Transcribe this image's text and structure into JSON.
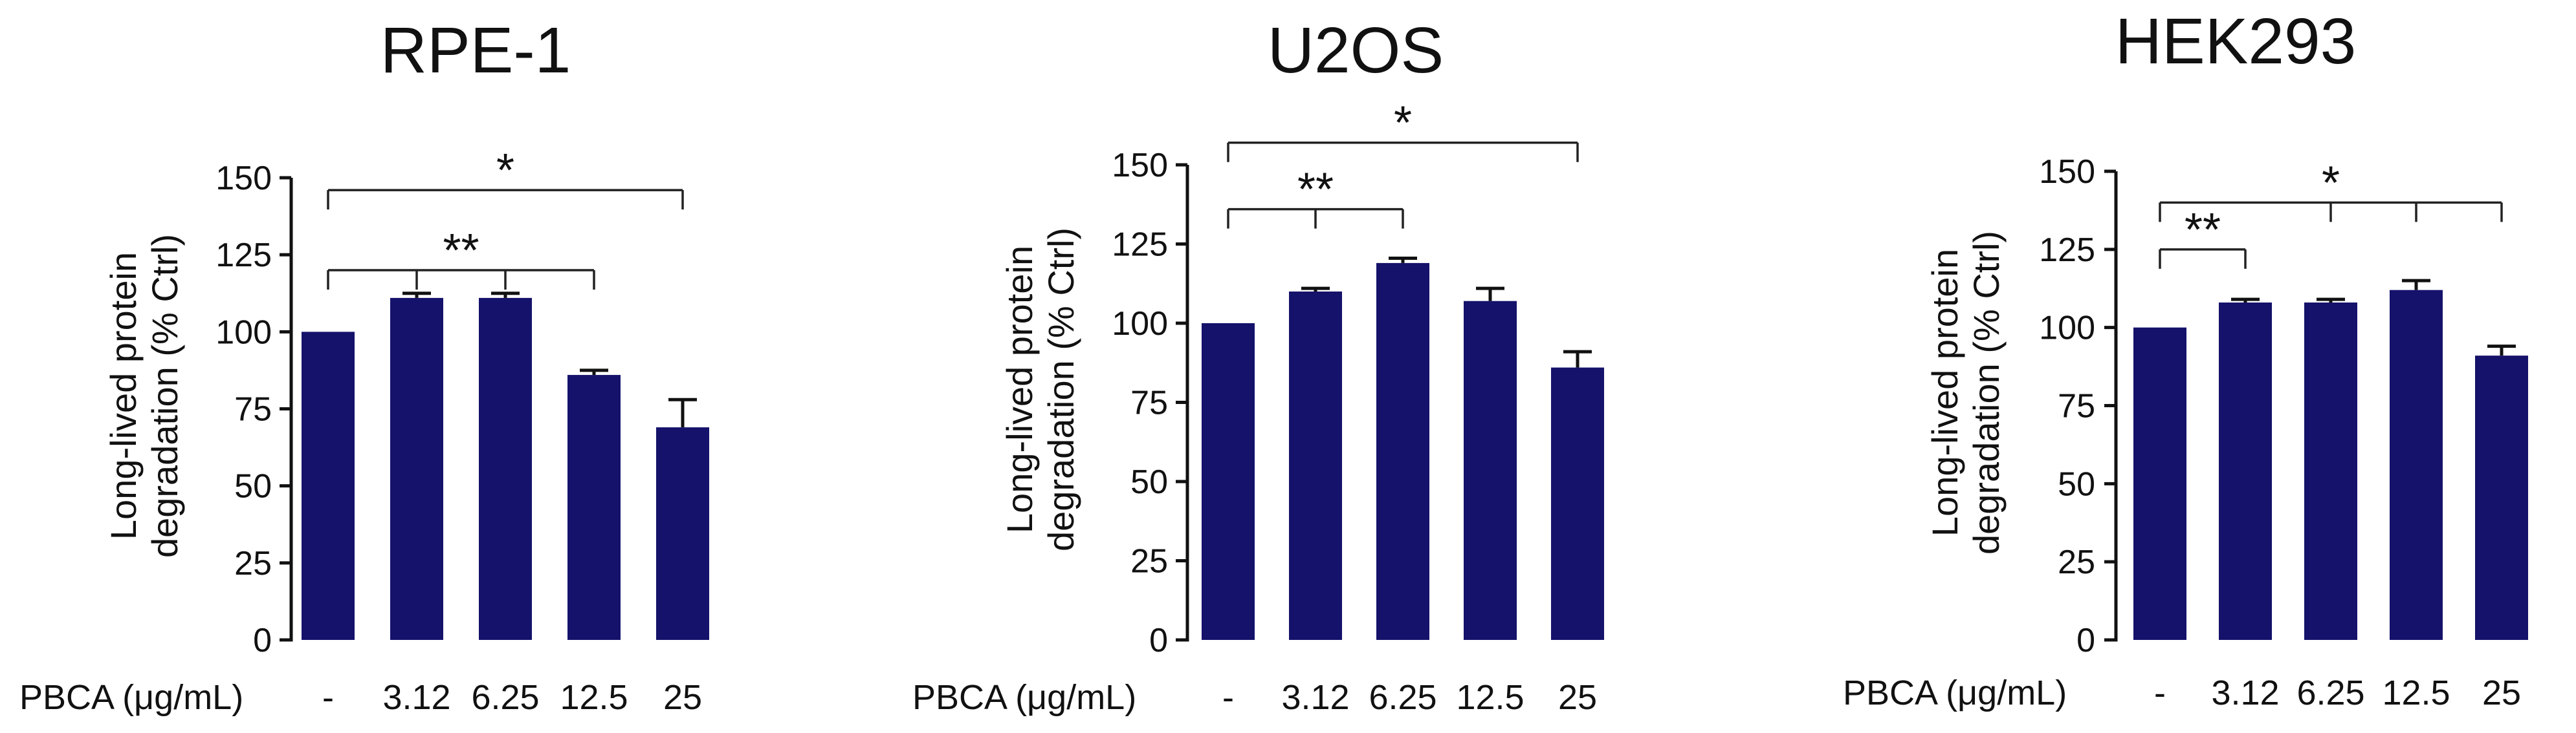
{
  "xaxis_label": "PBCA (μg/mL)",
  "chart_data": [
    {
      "type": "bar",
      "title": "RPE-1",
      "ylabel": "Long-lived protein degradation (% Ctrl)",
      "ylabel_lines": [
        "Long-lived protein",
        "degradation (% Ctrl)"
      ],
      "xlabel": "PBCA (μg/mL)",
      "categories": [
        "-",
        "3.12",
        "6.25",
        "12.5",
        "25"
      ],
      "values": [
        100,
        111,
        111,
        86,
        69
      ],
      "errors": [
        0,
        1.5,
        1.5,
        1.5,
        9
      ],
      "ylim": [
        0,
        150
      ],
      "yticks": [
        0,
        25,
        50,
        75,
        100,
        125,
        150
      ],
      "color": "#15126b",
      "significance": [
        {
          "from": 0,
          "ticks": [
            1,
            2,
            3
          ],
          "label": "**",
          "y": 120
        },
        {
          "from": 0,
          "ticks": [
            4
          ],
          "label": "*",
          "y": 146
        }
      ]
    },
    {
      "type": "bar",
      "title": "U2OS",
      "ylabel": "Long-lived protein degradation (% Ctrl)",
      "ylabel_lines": [
        "Long-lived protein",
        "degradation (% Ctrl)"
      ],
      "xlabel": "PBCA (μg/mL)",
      "categories": [
        "-",
        "3.12",
        "6.25",
        "12.5",
        "25"
      ],
      "values": [
        100,
        110,
        119,
        107,
        86
      ],
      "errors": [
        0,
        1,
        1.5,
        4,
        5
      ],
      "ylim": [
        0,
        150
      ],
      "yticks": [
        0,
        25,
        50,
        75,
        100,
        125,
        150
      ],
      "color": "#15126b",
      "significance": [
        {
          "from": 0,
          "ticks": [
            1,
            2
          ],
          "label": "**",
          "y": 136
        },
        {
          "from": 0,
          "ticks": [
            4
          ],
          "label": "*",
          "y": 157
        }
      ]
    },
    {
      "type": "bar",
      "title": "HEK293",
      "ylabel": "Long-lived protein degradation (% Ctrl)",
      "ylabel_lines": [
        "Long-lived protein",
        "degradation (% Ctrl)"
      ],
      "xlabel": "PBCA (μg/mL)",
      "categories": [
        "-",
        "3.12",
        "6.25",
        "12.5",
        "25"
      ],
      "values": [
        100,
        108,
        108,
        112,
        91
      ],
      "errors": [
        0,
        1,
        1,
        3,
        3
      ],
      "ylim": [
        0,
        150
      ],
      "yticks": [
        0,
        25,
        50,
        75,
        100,
        125,
        150
      ],
      "color": "#15126b",
      "significance": [
        {
          "from": 0,
          "ticks": [
            1
          ],
          "label": "**",
          "y": 125
        },
        {
          "from": 0,
          "ticks": [
            2,
            3,
            4
          ],
          "label": "*",
          "y": 140
        }
      ]
    }
  ]
}
